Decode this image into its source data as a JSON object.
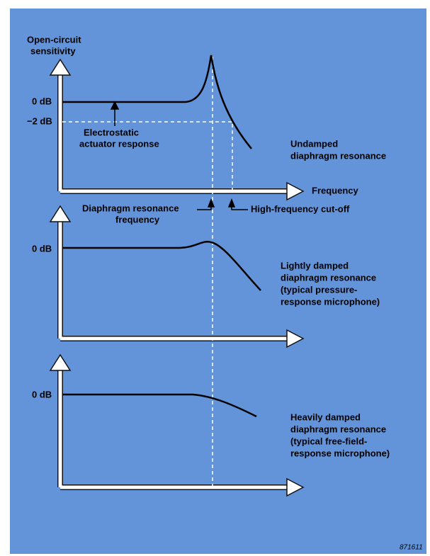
{
  "axis_label": [
    "Open-circuit",
    "sensitivity"
  ],
  "frequency_label": "Frequency",
  "panels": [
    {
      "zero_label": "0 dB",
      "minus_label": "−2 dB",
      "description": [
        "Undamped",
        "diaphragm resonance"
      ]
    },
    {
      "zero_label": "0 dB",
      "description": [
        "Lightly damped",
        "diaphragm resonance",
        "(typical pressure-",
        "response microphone)"
      ]
    },
    {
      "zero_label": "0 dB",
      "description": [
        "Heavily damped",
        "diaphragm resonance",
        "(typical free-field-",
        "response microphone)"
      ]
    }
  ],
  "annotations": {
    "actuator": [
      "Electrostatic",
      "actuator response"
    ],
    "resonance": [
      "Diaphragm resonance",
      "frequency"
    ],
    "cutoff": "High-frequency cut-off"
  },
  "figure_id": "871611"
}
